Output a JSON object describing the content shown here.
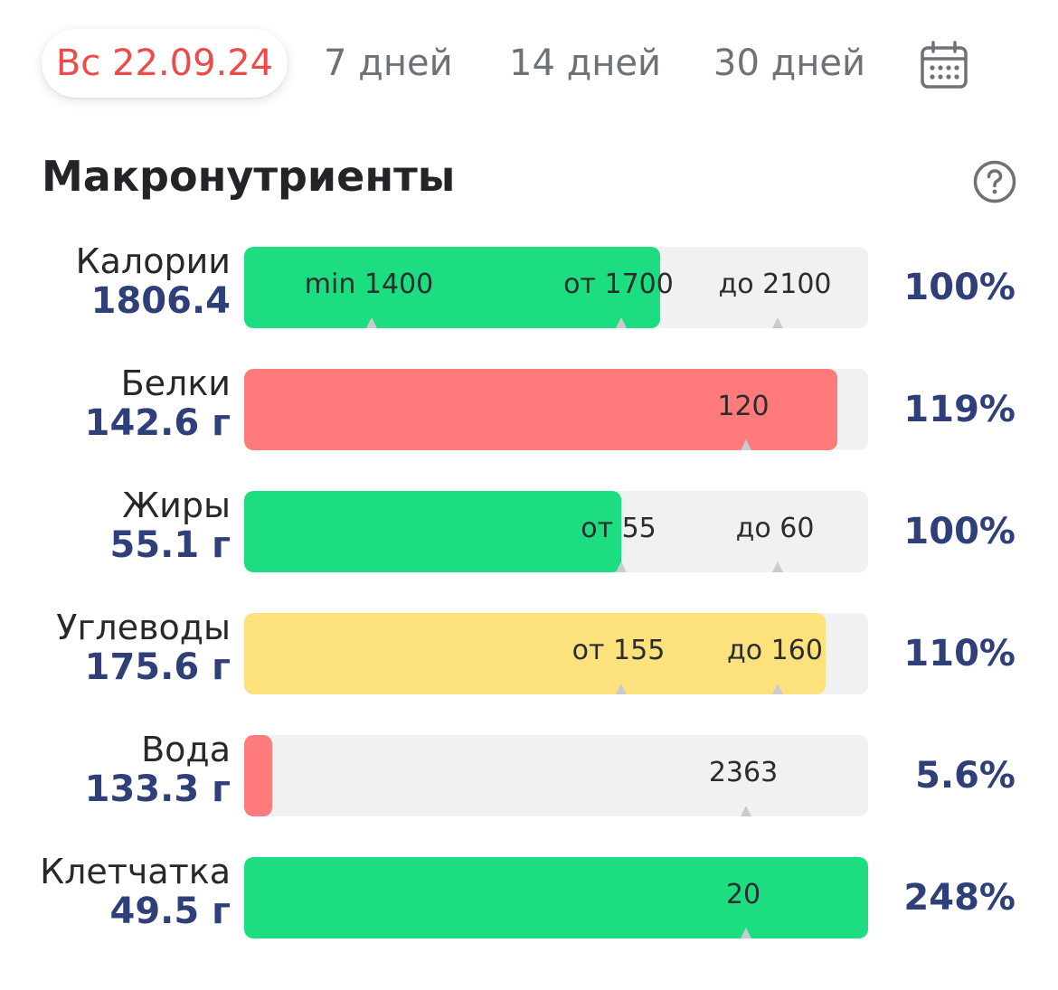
{
  "tabs": {
    "date": "Вс 22.09.24",
    "days7": "7 дней",
    "days14": "14 дней",
    "days30": "30 дней",
    "calendar_icon": "calendar-icon",
    "active_color": "#ef4a4a"
  },
  "section": {
    "title": "Макронутриенты",
    "help_icon": "question-circle-icon"
  },
  "colors": {
    "green": "#1cde80",
    "red": "#ff7a7a",
    "yellow": "#fde17c",
    "track": "#f0f1f3",
    "value_text": "#2f3f7a"
  },
  "rows": [
    {
      "label": "Калории",
      "value": "1806.4",
      "percent": "100%",
      "fill_fraction": 0.667,
      "fill_color": "green",
      "markers": [
        {
          "text": "min 1400",
          "fraction": 0.2
        },
        {
          "text": "от 1700",
          "fraction": 0.6
        },
        {
          "text": "до 2100",
          "fraction": 0.85
        }
      ]
    },
    {
      "label": "Белки",
      "value": "142.6 г",
      "percent": "119%",
      "fill_fraction": 0.95,
      "fill_color": "red",
      "markers": [
        {
          "text": "120",
          "fraction": 0.8
        }
      ]
    },
    {
      "label": "Жиры",
      "value": "55.1 г",
      "percent": "100%",
      "fill_fraction": 0.605,
      "fill_color": "green",
      "markers": [
        {
          "text": "от 55",
          "fraction": 0.6
        },
        {
          "text": "до 60",
          "fraction": 0.85
        }
      ]
    },
    {
      "label": "Углеводы",
      "value": "175.6 г",
      "percent": "110%",
      "fill_fraction": 0.932,
      "fill_color": "yellow",
      "markers": [
        {
          "text": "от 155",
          "fraction": 0.6
        },
        {
          "text": "до 160",
          "fraction": 0.85
        }
      ]
    },
    {
      "label": "Вода",
      "value": "133.3 г",
      "percent": "5.6%",
      "fill_fraction": 0.045,
      "fill_color": "red",
      "markers": [
        {
          "text": "2363",
          "fraction": 0.8
        }
      ]
    },
    {
      "label": "Клетчатка",
      "value": "49.5 г",
      "percent": "248%",
      "fill_fraction": 1.0,
      "fill_color": "green",
      "markers": [
        {
          "text": "20",
          "fraction": 0.8
        }
      ]
    }
  ]
}
